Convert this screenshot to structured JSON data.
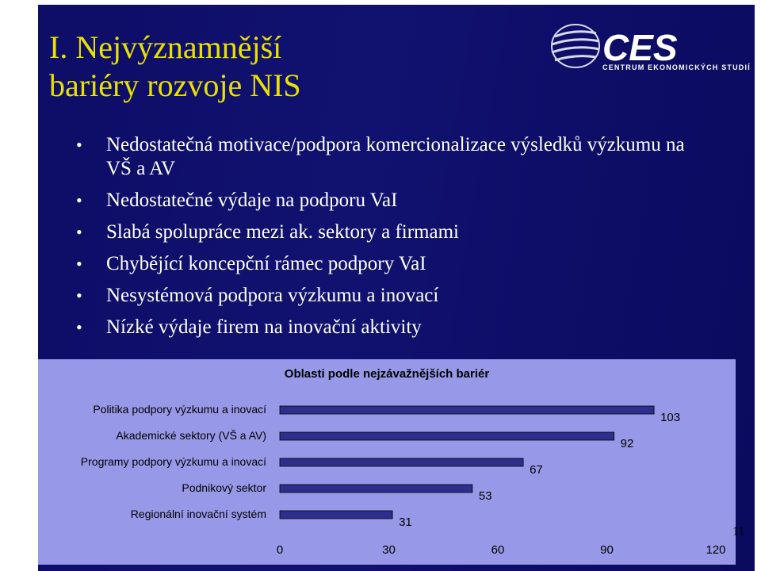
{
  "slide": {
    "title_line1": "I. Nejvýznamnější",
    "title_line2": "bariéry rozvoje NIS",
    "page_number": "11"
  },
  "logo": {
    "text": "CES",
    "tagline": "CENTRUM EKONOMICKÝCH STUDIÍ"
  },
  "bullets": [
    "Nedostatečná motivace/podpora komercionalizace výsledků výzkumu na VŠ a AV",
    "Nedostatečné výdaje na podporu VaI",
    "Slabá spolupráce mezi ak. sektory a firmami",
    "Chybějící koncepční rámec podpory VaI",
    "Nesystémová podpora výzkumu a inovací",
    "Nízké výdaje firem na inovační aktivity"
  ],
  "colors": {
    "background": "#0d0d66",
    "title": "#e8e200",
    "chart_bg": "#9898e8",
    "bar": "#2e2e8c"
  },
  "chart_data": {
    "type": "bar",
    "orientation": "horizontal",
    "title": "Oblasti podle nejzávažnějších bariér",
    "categories": [
      "Politika podpory výzkumu a inovací",
      "Akademické sektory (VŠ a AV)",
      "Programy podpory výzkumu a inovací",
      "Podnikový sektor",
      "Regionální inovační systém"
    ],
    "values": [
      103,
      92,
      67,
      53,
      31
    ],
    "xlim": [
      0,
      120
    ],
    "xticks": [
      "0",
      "30",
      "60",
      "90",
      "120"
    ],
    "grid": false,
    "legend": "none"
  }
}
